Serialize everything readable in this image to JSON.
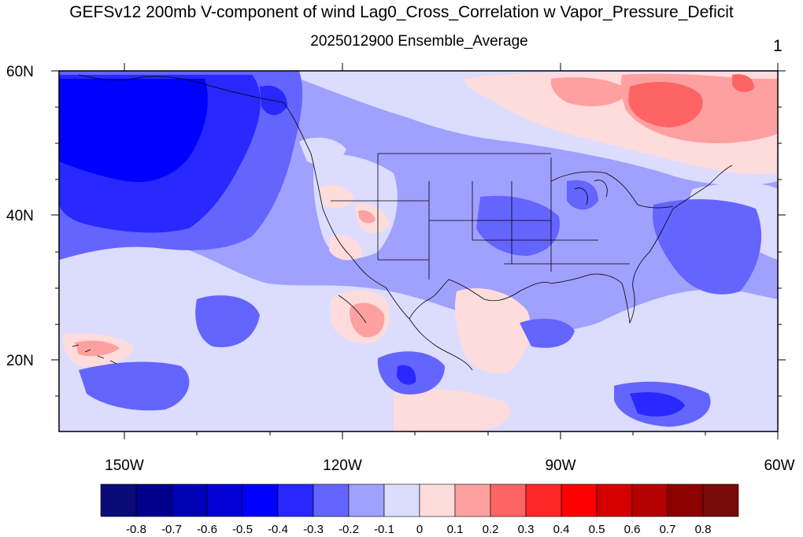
{
  "header": {
    "title": "GEFSv12 200mb V-component of wind Lag0_Cross_Correlation w Vapor_Pressure_Deficit",
    "subtitle": "2025012900 Ensemble_Average",
    "panel_number": "1"
  },
  "map": {
    "lat_labels": [
      "60N",
      "40N",
      "20N"
    ],
    "lon_labels": [
      "150W",
      "120W",
      "90W",
      "60W"
    ],
    "lat_range": [
      10,
      60
    ],
    "lon_range": [
      -160,
      -60
    ]
  },
  "colorbar": {
    "colors": [
      "#0a0a78",
      "#00008c",
      "#0000b4",
      "#0000d2",
      "#0000ff",
      "#2828ff",
      "#6464ff",
      "#a0a0ff",
      "#dcdcff",
      "#ffdcdc",
      "#ffa0a0",
      "#ff6464",
      "#ff2828",
      "#ff0000",
      "#d20000",
      "#b40000",
      "#8c0000",
      "#780a0a"
    ],
    "labels": [
      "-0.8",
      "-0.7",
      "-0.6",
      "-0.5",
      "-0.4",
      "-0.3",
      "-0.2",
      "-0.1",
      "0",
      "0.1",
      "0.2",
      "0.3",
      "0.4",
      "0.5",
      "0.6",
      "0.7",
      "0.8"
    ]
  }
}
